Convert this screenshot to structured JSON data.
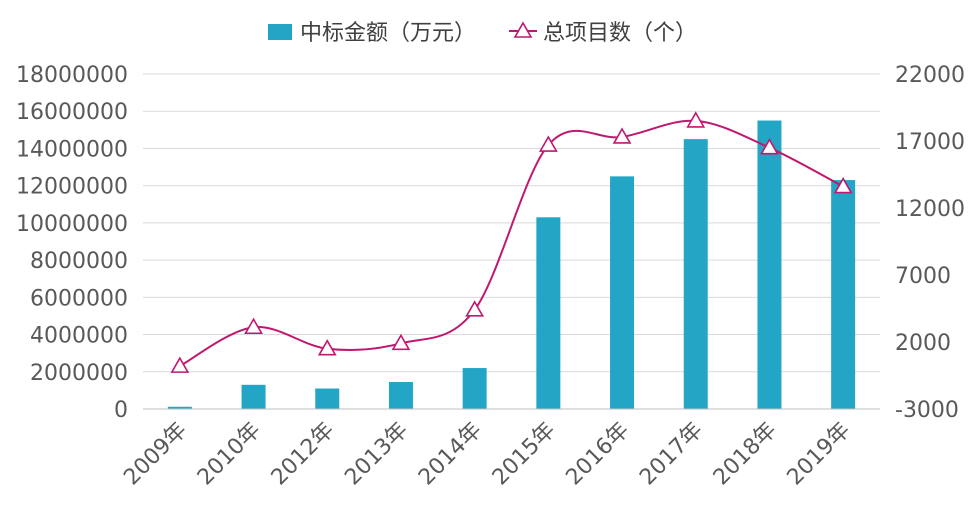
{
  "chart_data": {
    "type": "bar+line",
    "categories": [
      "2009年",
      "2010年",
      "2012年",
      "2013年",
      "2014年",
      "2015年",
      "2016年",
      "2017年",
      "2018年",
      "2019年"
    ],
    "series": [
      {
        "name": "中标金额（万元）",
        "type": "bar",
        "axis": "left",
        "color": "#23a6c6",
        "values": [
          120000,
          1300000,
          1100000,
          1450000,
          2200000,
          10300000,
          12500000,
          14500000,
          15500000,
          12300000
        ]
      },
      {
        "name": "总项目数（个）",
        "type": "line",
        "axis": "right",
        "color": "#c0186e",
        "marker": "triangle",
        "smooth": true,
        "values": [
          200,
          3100,
          1500,
          1900,
          4400,
          16700,
          17300,
          18500,
          16500,
          13600
        ]
      }
    ],
    "y_left": {
      "min": 0,
      "max": 18000000,
      "ticks": [
        "0",
        "2000000",
        "4000000",
        "6000000",
        "8000000",
        "10000000",
        "12000000",
        "14000000",
        "16000000",
        "18000000"
      ],
      "tick_values": [
        0,
        2000000,
        4000000,
        6000000,
        8000000,
        10000000,
        12000000,
        14000000,
        16000000,
        18000000
      ]
    },
    "y_right": {
      "min": -3000,
      "max": 22000,
      "ticks": [
        "-3000",
        "2000",
        "7000",
        "12000",
        "17000",
        "22000"
      ],
      "tick_values": [
        -3000,
        2000,
        7000,
        12000,
        17000,
        22000
      ]
    },
    "grid": true,
    "legend": "top-center",
    "title": "",
    "xlabel": "",
    "ylabel": ""
  }
}
